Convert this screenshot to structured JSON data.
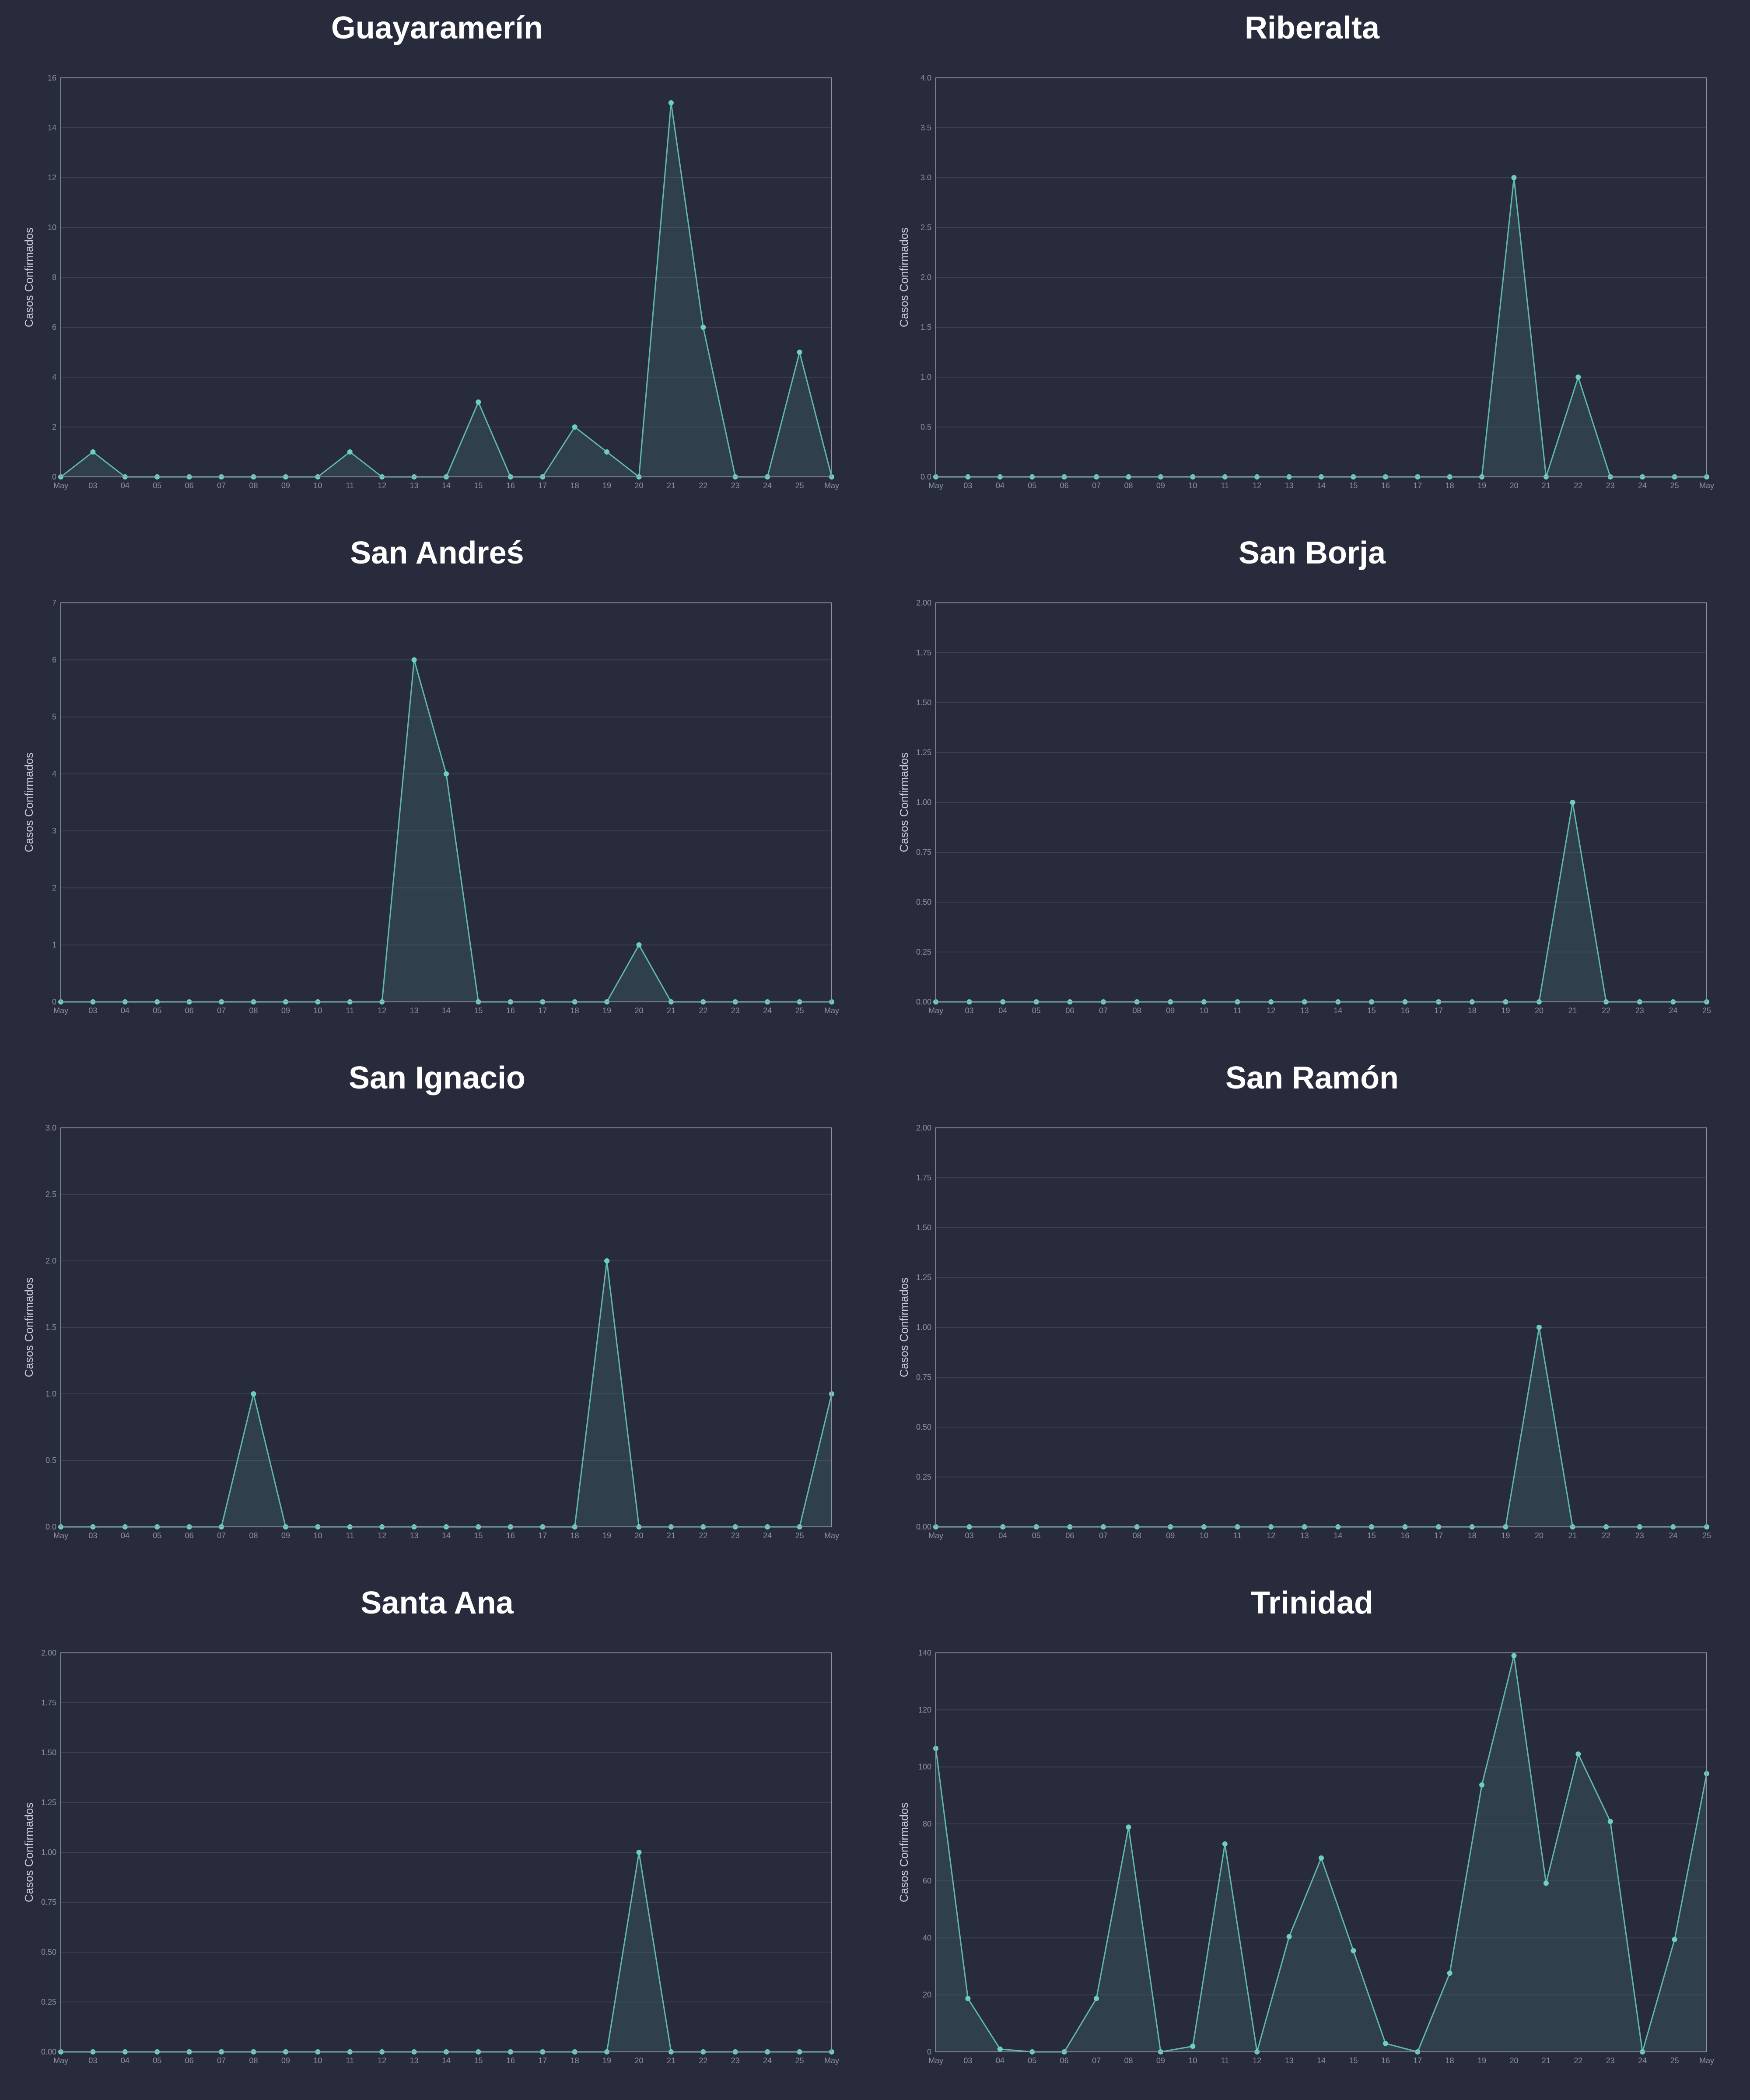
{
  "colors": {
    "background": "#272b3b",
    "line": "#5fb8a8",
    "point": "#6cd0bc",
    "area": "#4d8a8a",
    "grid": "#3a3f52",
    "frame": "#8d92a3",
    "title": "#ffffff"
  },
  "chart_data": [
    {
      "type": "area",
      "title": "Guayaramerín",
      "ylabel": "Casos Confirmados",
      "ylim": [
        0,
        16
      ],
      "yticks": [
        "0",
        "2",
        "4",
        "6",
        "8",
        "10",
        "12",
        "14",
        "16"
      ],
      "xtick_labels": [
        "May",
        "03",
        "04",
        "05",
        "06",
        "07",
        "08",
        "09",
        "10",
        "11",
        "12",
        "13",
        "14",
        "15",
        "16",
        "17",
        "18",
        "19",
        "20",
        "21",
        "22",
        "23",
        "24",
        "25",
        "May"
      ],
      "values": [
        0,
        1,
        0,
        0,
        0,
        0,
        0,
        0,
        0,
        1,
        0,
        0,
        0,
        3,
        0,
        0,
        2,
        1,
        0,
        15,
        6,
        0,
        0,
        5,
        0
      ],
      "grid": true
    },
    {
      "type": "area",
      "title": "Riberalta",
      "ylabel": "Casos Confirmados",
      "ylim": [
        0,
        4
      ],
      "yticks": [
        "0.0",
        "0.5",
        "1.0",
        "1.5",
        "2.0",
        "2.5",
        "3.0",
        "3.5",
        "4.0"
      ],
      "xtick_labels": [
        "May",
        "03",
        "04",
        "05",
        "06",
        "07",
        "08",
        "09",
        "10",
        "11",
        "12",
        "13",
        "14",
        "15",
        "16",
        "17",
        "18",
        "19",
        "20",
        "21",
        "22",
        "23",
        "24",
        "25",
        "May"
      ],
      "values": [
        0,
        0,
        0,
        0,
        0,
        0,
        0,
        0,
        0,
        0,
        0,
        0,
        0,
        0,
        0,
        0,
        0,
        0,
        3,
        0,
        1,
        0,
        0,
        0,
        0
      ],
      "grid": true
    },
    {
      "type": "area",
      "title": "San Andreś",
      "ylabel": "Casos Confirmados",
      "ylim": [
        0,
        7
      ],
      "yticks": [
        "0",
        "1",
        "2",
        "3",
        "4",
        "5",
        "6",
        "7"
      ],
      "xtick_labels": [
        "May",
        "03",
        "04",
        "05",
        "06",
        "07",
        "08",
        "09",
        "10",
        "11",
        "12",
        "13",
        "14",
        "15",
        "16",
        "17",
        "18",
        "19",
        "20",
        "21",
        "22",
        "23",
        "24",
        "25",
        "May"
      ],
      "values": [
        0,
        0,
        0,
        0,
        0,
        0,
        0,
        0,
        0,
        0,
        0,
        6,
        4,
        0,
        0,
        0,
        0,
        0,
        1,
        0,
        0,
        0,
        0,
        0,
        0
      ],
      "grid": true
    },
    {
      "type": "area",
      "title": "San Borja",
      "ylabel": "Casos Confirmados",
      "ylim": [
        0,
        2
      ],
      "yticks": [
        "0.00",
        "0.25",
        "0.50",
        "0.75",
        "1.00",
        "1.25",
        "1.50",
        "1.75",
        "2.00"
      ],
      "xtick_labels": [
        "May",
        "03",
        "04",
        "05",
        "06",
        "07",
        "08",
        "09",
        "10",
        "11",
        "12",
        "13",
        "14",
        "15",
        "16",
        "17",
        "18",
        "19",
        "20",
        "21",
        "22",
        "23",
        "24",
        "25"
      ],
      "values": [
        0,
        0,
        0,
        0,
        0,
        0,
        0,
        0,
        0,
        0,
        0,
        0,
        0,
        0,
        0,
        0,
        0,
        0,
        0,
        1,
        0,
        0,
        0,
        0
      ],
      "grid": true
    },
    {
      "type": "area",
      "title": "San Ignacio",
      "ylabel": "Casos Confirmados",
      "ylim": [
        0,
        3
      ],
      "yticks": [
        "0.0",
        "0.5",
        "1.0",
        "1.5",
        "2.0",
        "2.5",
        "3.0"
      ],
      "xtick_labels": [
        "May",
        "03",
        "04",
        "05",
        "06",
        "07",
        "08",
        "09",
        "10",
        "11",
        "12",
        "13",
        "14",
        "15",
        "16",
        "17",
        "18",
        "19",
        "20",
        "21",
        "22",
        "23",
        "24",
        "25",
        "May"
      ],
      "values": [
        0,
        0,
        0,
        0,
        0,
        0,
        1,
        0,
        0,
        0,
        0,
        0,
        0,
        0,
        0,
        0,
        0,
        2,
        0,
        0,
        0,
        0,
        0,
        0,
        1
      ],
      "grid": true
    },
    {
      "type": "area",
      "title": "San Ramón",
      "ylabel": "Casos Confirmados",
      "ylim": [
        0,
        2
      ],
      "yticks": [
        "0.00",
        "0.25",
        "0.50",
        "0.75",
        "1.00",
        "1.25",
        "1.50",
        "1.75",
        "2.00"
      ],
      "xtick_labels": [
        "May",
        "03",
        "04",
        "05",
        "06",
        "07",
        "08",
        "09",
        "10",
        "11",
        "12",
        "13",
        "14",
        "15",
        "16",
        "17",
        "18",
        "19",
        "20",
        "21",
        "22",
        "23",
        "24",
        "25"
      ],
      "values": [
        0,
        0,
        0,
        0,
        0,
        0,
        0,
        0,
        0,
        0,
        0,
        0,
        0,
        0,
        0,
        0,
        0,
        0,
        1,
        0,
        0,
        0,
        0,
        0
      ],
      "grid": true
    },
    {
      "type": "area",
      "title": "Santa Ana",
      "ylabel": "Casos Confirmados",
      "ylim": [
        0,
        2
      ],
      "yticks": [
        "0.00",
        "0.25",
        "0.50",
        "0.75",
        "1.00",
        "1.25",
        "1.50",
        "1.75",
        "2.00"
      ],
      "xtick_labels": [
        "May",
        "03",
        "04",
        "05",
        "06",
        "07",
        "08",
        "09",
        "10",
        "11",
        "12",
        "13",
        "14",
        "15",
        "16",
        "17",
        "18",
        "19",
        "20",
        "21",
        "22",
        "23",
        "24",
        "25",
        "May"
      ],
      "values": [
        0,
        0,
        0,
        0,
        0,
        0,
        0,
        0,
        0,
        0,
        0,
        0,
        0,
        0,
        0,
        0,
        0,
        0,
        1,
        0,
        0,
        0,
        0,
        0,
        0
      ],
      "grid": true
    },
    {
      "type": "area",
      "title": "Trinidad",
      "ylabel": "Casos Confirmados",
      "ylim": [
        0,
        142
      ],
      "yticks": [
        "0",
        "20",
        "40",
        "60",
        "80",
        "100",
        "120",
        "140"
      ],
      "xtick_labels": [
        "May",
        "03",
        "04",
        "05",
        "06",
        "07",
        "08",
        "09",
        "10",
        "11",
        "12",
        "13",
        "14",
        "15",
        "16",
        "17",
        "18",
        "19",
        "20",
        "21",
        "22",
        "23",
        "24",
        "25",
        "May"
      ],
      "values": [
        108,
        19,
        1,
        0,
        0,
        19,
        80,
        0,
        2,
        74,
        0,
        41,
        69,
        36,
        3,
        0,
        28,
        95,
        141,
        60,
        106,
        82,
        0,
        40,
        99
      ],
      "grid": true
    }
  ]
}
